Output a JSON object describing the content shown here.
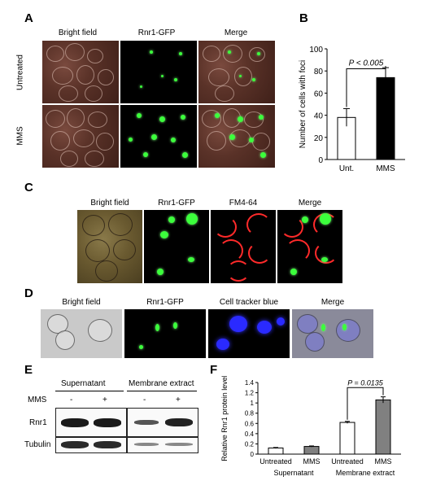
{
  "panels": {
    "A": {
      "label": "A",
      "col_headers": [
        "Bright field",
        "Rnr1-GFP",
        "Merge"
      ],
      "row_labels": [
        "Untreated",
        "MMS"
      ]
    },
    "B": {
      "label": "B",
      "pvalue": "P < 0.005"
    },
    "C": {
      "label": "C",
      "col_headers": [
        "Bright field",
        "Rnr1-GFP",
        "FM4-64",
        "Merge"
      ]
    },
    "D": {
      "label": "D",
      "col_headers": [
        "Bright field",
        "Rnr1-GFP",
        "Cell tracker blue",
        "Merge"
      ]
    },
    "E": {
      "label": "E",
      "groups": [
        "Supernatant",
        "Membrane extract"
      ],
      "mms_label": "MMS",
      "mms_signs": [
        "-",
        "+",
        "-",
        "+"
      ],
      "rows": [
        "Rnr1",
        "Tubulin"
      ]
    },
    "F": {
      "label": "F",
      "pvalue": "P = 0.0135",
      "group_labels": [
        "Supernatant",
        "Membrane extract"
      ]
    }
  },
  "chart_data": [
    {
      "type": "bar",
      "categories": [
        "Unt.",
        "MMS"
      ],
      "values": [
        38,
        74
      ],
      "errors": [
        8,
        9
      ],
      "ylabel": "Number of cells with foci",
      "ylim": [
        0,
        100
      ],
      "yticks": [
        0,
        20,
        40,
        60,
        80,
        100
      ],
      "colors": [
        "#ffffff",
        "#000000"
      ]
    },
    {
      "type": "bar",
      "categories": [
        "Untreated",
        "MMS",
        "Untreated",
        "MMS"
      ],
      "values": [
        0.12,
        0.15,
        0.62,
        1.06
      ],
      "errors": [
        0.01,
        0.01,
        0.02,
        0.06
      ],
      "ylabel": "Relative Rnr1 protein level",
      "ylim": [
        0,
        1.4
      ],
      "yticks": [
        "0",
        "0.2",
        "0.4",
        "0.6",
        "0.8",
        "1",
        "1.2",
        "1.4"
      ],
      "colors": [
        "#ffffff",
        "#808080",
        "#ffffff",
        "#808080"
      ]
    }
  ]
}
